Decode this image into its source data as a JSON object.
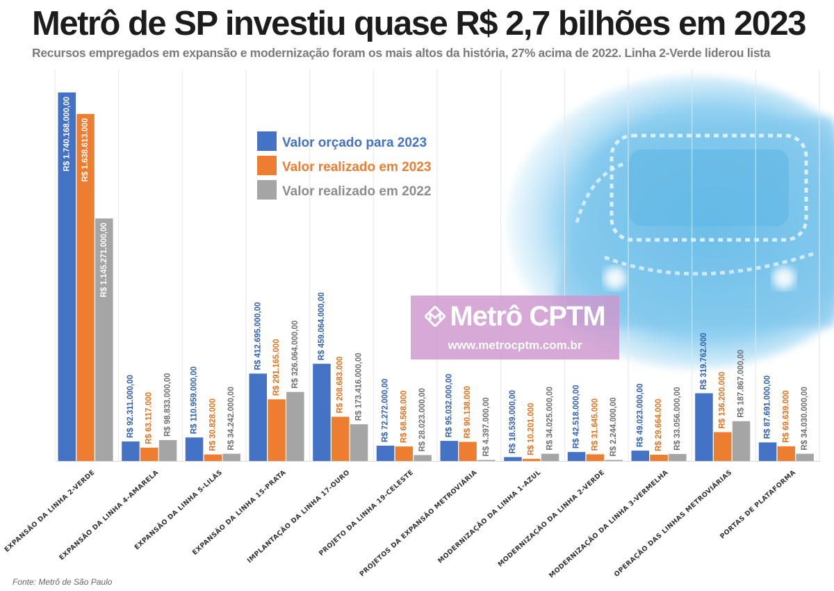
{
  "header": {
    "title": "Metrô de SP investiu quase R$ 2,7 bilhões em 2023",
    "subtitle": "Recursos empregados em expansão e modernização foram os mais altos da história, 27% acima de 2022. Linha 2-Verde liderou lista"
  },
  "watermark": {
    "brand": "Metrô CPTM",
    "url": "www.metrocptm.com.br"
  },
  "source": "Fonte: Metrô de São Paulo",
  "colors": {
    "orcado": "#4472c4",
    "realizado_2023": "#ed7d31",
    "realizado_2022": "#a5a5a5",
    "sky": "#66bce8"
  },
  "chart_data": {
    "type": "bar",
    "categories": [
      "EXPANSÃO DA LINHA 2-VERDE",
      "EXPANSÃO DA LINHA 4-AMARELA",
      "EXPANSÃO DA LINHA 5-LILÁS",
      "EXPANSÃO DA LINHA 15-PRATA",
      "IMPLANTAÇÃO DA LINHA 17-OURO",
      "PROJETO DA LINHA 19-CELESTE",
      "PROJETOS DA EXPANSÃO METROVIÁRIA",
      "MODERNIZAÇÃO DA LINHA 1-AZUL",
      "MODERNIZAÇÃO DA LINHA 2-VERDE",
      "MODERNIZAÇÃO DA LINHA 3-VERMELHA",
      "OPERAÇÃO DAS LINHAS METROVIÁRIAS",
      "PORTAS DE PLATAFORMA"
    ],
    "series": [
      {
        "name": "Valor orçado para 2023",
        "color": "#4472c4",
        "values": [
          1740168000,
          92311000,
          110959000,
          412695000,
          459064000,
          72272000,
          95032000,
          18539000,
          42518000,
          49023000,
          319762000,
          87691000
        ],
        "labels": [
          "R$ 1.740.168.000,00",
          "R$ 92.311.000,00",
          "R$ 110.959.000,00",
          "R$ 412.695.000,00",
          "R$ 459.064.000,00",
          "R$ 72.272.000,00",
          "R$ 95.032.000,00",
          "R$ 18.539.000,00",
          "R$ 42.518.000,00",
          "R$ 49.023.000,00",
          "R$ 319.762.000",
          "R$ 87.691.000,00"
        ]
      },
      {
        "name": "Valor realizado em 2023",
        "color": "#ed7d31",
        "values": [
          1638613000,
          63117000,
          30828000,
          291165000,
          208683000,
          68568000,
          90138000,
          10201000,
          31645000,
          29664000,
          136200000,
          69639000
        ],
        "labels": [
          "R$ 1.638.613.000",
          "R$ 63.117.000",
          "R$ 30.828.000",
          "R$ 291.165.000",
          "R$ 208.683.000",
          "R$ 68.568.000",
          "R$ 90.138.000",
          "R$ 10.201.000",
          "R$ 31.645.000",
          "R$ 29.664.000",
          "R$ 136.200.000",
          "R$ 69.639.000"
        ]
      },
      {
        "name": "Valor realizado em 2022",
        "color": "#a5a5a5",
        "values": [
          1145271000,
          98833000,
          34242000,
          326064000,
          173416000,
          28023000,
          4397000,
          34025000,
          2244000,
          33056000,
          187867000,
          34030000
        ],
        "labels": [
          "R$ 1.145.271.000,00",
          "R$ 98.833.000,00",
          "R$ 34.242.000,00",
          "R$ 326.064.000,00",
          "R$ 173.416.000,00",
          "R$ 28.023.000,00",
          "R$ 4.397.000,00",
          "R$ 34.025.000,00",
          "R$ 2.244.000,00",
          "R$ 33.056.000,00",
          "R$ 187.867.000,00",
          "R$ 34.030.000,00"
        ]
      }
    ],
    "ylim": [
      0,
      1800000000
    ],
    "grid": false,
    "legend_position": "top-center"
  }
}
